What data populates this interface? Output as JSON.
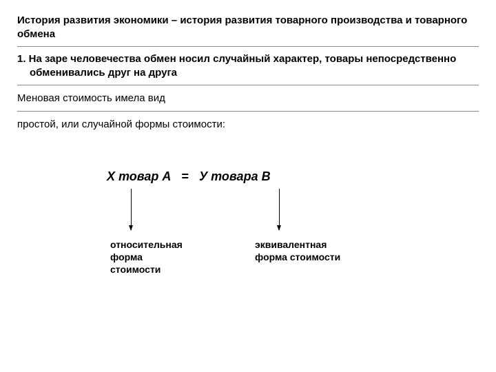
{
  "title": "История развития экономики – история развития товарного производства и товарного обмена",
  "item1": "1. На заре человечества обмен носил случайный характер, товары непосредственно обменивались друг на друга",
  "para1": "Меновая стоимость имела вид",
  "para2": "простой, или случайной формы стоимости:",
  "equation": {
    "left": "Х товар А",
    "equals": "=",
    "right": "У товара В"
  },
  "labels": {
    "left": "относительная\nформа\nстоимости",
    "right": "эквивалентная\nформа стоимости"
  },
  "styling": {
    "background_color": "#ffffff",
    "text_color": "#000000",
    "divider_color": "#888888",
    "title_fontsize": 15,
    "body_fontsize": 15,
    "equation_fontsize": 18,
    "label_fontsize": 14,
    "arrow_height": 60,
    "arrow_color": "#000000"
  }
}
